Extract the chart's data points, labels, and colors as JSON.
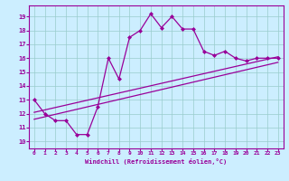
{
  "xlabel": "Windchill (Refroidissement éolien,°C)",
  "bg_color": "#cceeff",
  "line_color": "#990099",
  "grid_color": "#99cccc",
  "xlim": [
    -0.5,
    23.5
  ],
  "ylim": [
    9.5,
    19.8
  ],
  "xticks": [
    0,
    1,
    2,
    3,
    4,
    5,
    6,
    7,
    8,
    9,
    10,
    11,
    12,
    13,
    14,
    15,
    16,
    17,
    18,
    19,
    20,
    21,
    22,
    23
  ],
  "yticks": [
    10,
    11,
    12,
    13,
    14,
    15,
    16,
    17,
    18,
    19
  ],
  "series1_x": [
    0,
    1,
    2,
    3,
    4,
    5,
    6,
    7,
    8,
    9,
    10,
    11,
    12,
    13,
    14,
    15,
    16,
    17,
    18,
    19,
    20,
    21,
    22,
    23
  ],
  "series1_y": [
    13.0,
    12.0,
    11.5,
    11.5,
    10.5,
    10.5,
    12.5,
    16.0,
    14.5,
    17.5,
    18.0,
    19.2,
    18.2,
    19.0,
    18.1,
    18.1,
    16.5,
    16.2,
    16.5,
    16.0,
    15.8,
    16.0,
    16.0,
    16.0
  ],
  "series2_x": [
    0,
    23
  ],
  "series2_y": [
    12.1,
    16.1
  ],
  "series3_x": [
    0,
    23
  ],
  "series3_y": [
    11.6,
    15.7
  ],
  "marker": "D",
  "markersize": 2.0,
  "linewidth": 0.9
}
